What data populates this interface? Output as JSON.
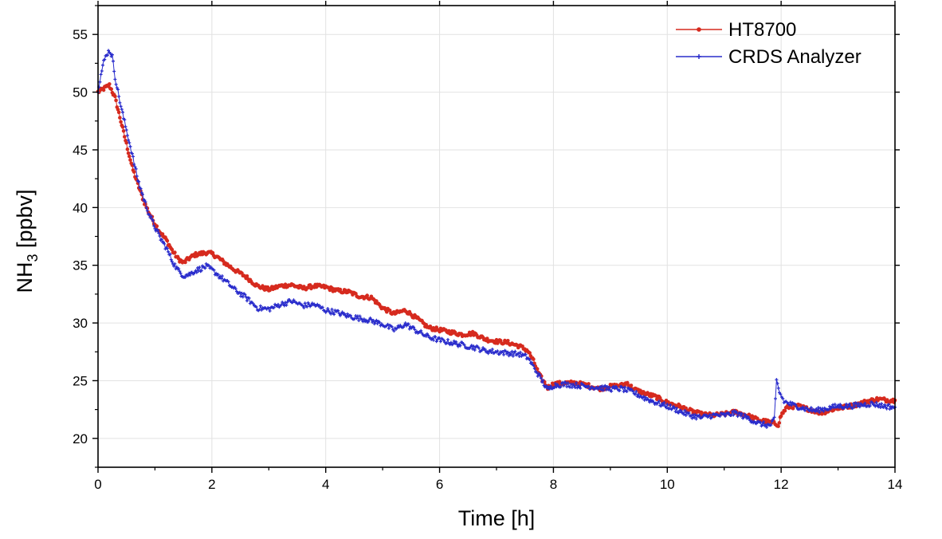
{
  "chart_data": {
    "type": "line",
    "xlabel": "Time [h]",
    "ylabel_main": "NH",
    "ylabel_sub": "3",
    "ylabel_unit": " [ppbv]",
    "xlim": [
      0,
      14
    ],
    "ylim": [
      17.5,
      57.5
    ],
    "xticks": [
      0,
      2,
      4,
      6,
      8,
      10,
      12,
      14
    ],
    "yticks": [
      20,
      25,
      30,
      35,
      40,
      45,
      50,
      55
    ],
    "grid": true,
    "legend_position": "top-right",
    "series": [
      {
        "name": "HT8700",
        "color": "#d62a1e",
        "marker": "circle",
        "points": [
          [
            0.0,
            50.0
          ],
          [
            0.1,
            50.3
          ],
          [
            0.2,
            50.6
          ],
          [
            0.3,
            49.5
          ],
          [
            0.4,
            47.5
          ],
          [
            0.5,
            45.5
          ],
          [
            0.6,
            43.5
          ],
          [
            0.7,
            42.0
          ],
          [
            0.8,
            40.6
          ],
          [
            0.9,
            39.5
          ],
          [
            1.0,
            38.6
          ],
          [
            1.1,
            37.8
          ],
          [
            1.2,
            37.2
          ],
          [
            1.3,
            36.3
          ],
          [
            1.4,
            35.6
          ],
          [
            1.5,
            35.2
          ],
          [
            1.6,
            35.6
          ],
          [
            1.7,
            35.9
          ],
          [
            1.8,
            36.0
          ],
          [
            1.9,
            36.1
          ],
          [
            2.0,
            36.0
          ],
          [
            2.1,
            35.7
          ],
          [
            2.2,
            35.3
          ],
          [
            2.4,
            34.6
          ],
          [
            2.6,
            34.0
          ],
          [
            2.8,
            33.2
          ],
          [
            3.0,
            32.9
          ],
          [
            3.2,
            33.2
          ],
          [
            3.4,
            33.3
          ],
          [
            3.6,
            33.0
          ],
          [
            3.8,
            33.2
          ],
          [
            4.0,
            33.1
          ],
          [
            4.2,
            32.8
          ],
          [
            4.4,
            32.7
          ],
          [
            4.6,
            32.3
          ],
          [
            4.8,
            32.2
          ],
          [
            5.0,
            31.3
          ],
          [
            5.2,
            30.8
          ],
          [
            5.4,
            31.1
          ],
          [
            5.6,
            30.4
          ],
          [
            5.8,
            29.6
          ],
          [
            6.0,
            29.4
          ],
          [
            6.2,
            29.2
          ],
          [
            6.4,
            29.0
          ],
          [
            6.6,
            29.1
          ],
          [
            6.8,
            28.6
          ],
          [
            7.0,
            28.4
          ],
          [
            7.2,
            28.3
          ],
          [
            7.4,
            28.0
          ],
          [
            7.55,
            27.6
          ],
          [
            7.65,
            26.7
          ],
          [
            7.75,
            25.5
          ],
          [
            7.9,
            24.4
          ],
          [
            8.0,
            24.7
          ],
          [
            8.2,
            24.8
          ],
          [
            8.4,
            24.8
          ],
          [
            8.6,
            24.6
          ],
          [
            8.8,
            24.3
          ],
          [
            9.0,
            24.5
          ],
          [
            9.2,
            24.6
          ],
          [
            9.3,
            24.8
          ],
          [
            9.4,
            24.3
          ],
          [
            9.6,
            23.9
          ],
          [
            9.8,
            23.6
          ],
          [
            10.0,
            23.1
          ],
          [
            10.2,
            22.8
          ],
          [
            10.4,
            22.4
          ],
          [
            10.6,
            22.1
          ],
          [
            10.8,
            22.0
          ],
          [
            11.0,
            22.1
          ],
          [
            11.2,
            22.3
          ],
          [
            11.4,
            22.0
          ],
          [
            11.6,
            21.6
          ],
          [
            11.8,
            21.4
          ],
          [
            11.95,
            21.2
          ],
          [
            12.0,
            22.0
          ],
          [
            12.1,
            22.7
          ],
          [
            12.3,
            22.8
          ],
          [
            12.5,
            22.5
          ],
          [
            12.7,
            22.2
          ],
          [
            12.9,
            22.5
          ],
          [
            13.1,
            22.7
          ],
          [
            13.3,
            22.9
          ],
          [
            13.5,
            23.2
          ],
          [
            13.7,
            23.4
          ],
          [
            13.9,
            23.3
          ],
          [
            14.0,
            23.3
          ]
        ]
      },
      {
        "name": "CRDS Analyzer",
        "color": "#2a2dcc",
        "marker": "star",
        "points": [
          [
            0.0,
            50.2
          ],
          [
            0.05,
            51.5
          ],
          [
            0.1,
            52.6
          ],
          [
            0.15,
            53.3
          ],
          [
            0.2,
            53.6
          ],
          [
            0.25,
            53.1
          ],
          [
            0.3,
            51.3
          ],
          [
            0.4,
            48.8
          ],
          [
            0.5,
            46.7
          ],
          [
            0.6,
            44.6
          ],
          [
            0.7,
            42.4
          ],
          [
            0.8,
            40.8
          ],
          [
            0.9,
            39.4
          ],
          [
            1.0,
            38.3
          ],
          [
            1.1,
            37.3
          ],
          [
            1.2,
            36.5
          ],
          [
            1.3,
            35.4
          ],
          [
            1.4,
            34.6
          ],
          [
            1.5,
            34.1
          ],
          [
            1.6,
            34.2
          ],
          [
            1.7,
            34.5
          ],
          [
            1.8,
            34.7
          ],
          [
            1.9,
            34.9
          ],
          [
            2.0,
            34.6
          ],
          [
            2.2,
            33.8
          ],
          [
            2.4,
            32.9
          ],
          [
            2.6,
            32.2
          ],
          [
            2.8,
            31.3
          ],
          [
            3.0,
            31.2
          ],
          [
            3.2,
            31.6
          ],
          [
            3.4,
            31.9
          ],
          [
            3.6,
            31.5
          ],
          [
            3.8,
            31.6
          ],
          [
            4.0,
            31.1
          ],
          [
            4.2,
            30.9
          ],
          [
            4.4,
            30.6
          ],
          [
            4.6,
            30.4
          ],
          [
            4.8,
            30.2
          ],
          [
            5.0,
            29.9
          ],
          [
            5.2,
            29.4
          ],
          [
            5.4,
            29.9
          ],
          [
            5.6,
            29.3
          ],
          [
            5.8,
            28.8
          ],
          [
            6.0,
            28.5
          ],
          [
            6.2,
            28.3
          ],
          [
            6.4,
            28.1
          ],
          [
            6.6,
            27.9
          ],
          [
            6.8,
            27.6
          ],
          [
            7.0,
            27.5
          ],
          [
            7.2,
            27.4
          ],
          [
            7.4,
            27.3
          ],
          [
            7.55,
            27.0
          ],
          [
            7.65,
            26.2
          ],
          [
            7.8,
            25.0
          ],
          [
            7.9,
            24.2
          ],
          [
            8.0,
            24.6
          ],
          [
            8.2,
            24.7
          ],
          [
            8.4,
            24.6
          ],
          [
            8.6,
            24.5
          ],
          [
            8.8,
            24.4
          ],
          [
            9.0,
            24.3
          ],
          [
            9.2,
            24.3
          ],
          [
            9.4,
            24.0
          ],
          [
            9.6,
            23.5
          ],
          [
            9.8,
            23.1
          ],
          [
            10.0,
            22.8
          ],
          [
            10.2,
            22.4
          ],
          [
            10.4,
            22.0
          ],
          [
            10.6,
            21.8
          ],
          [
            10.8,
            22.0
          ],
          [
            11.0,
            22.0
          ],
          [
            11.2,
            22.2
          ],
          [
            11.4,
            21.8
          ],
          [
            11.6,
            21.3
          ],
          [
            11.8,
            21.1
          ],
          [
            11.88,
            21.6
          ],
          [
            11.92,
            25.0
          ],
          [
            11.97,
            24.0
          ],
          [
            12.05,
            23.2
          ],
          [
            12.2,
            22.9
          ],
          [
            12.4,
            22.6
          ],
          [
            12.6,
            22.4
          ],
          [
            12.8,
            22.6
          ],
          [
            13.0,
            22.8
          ],
          [
            13.2,
            22.8
          ],
          [
            13.4,
            22.9
          ],
          [
            13.6,
            23.0
          ],
          [
            13.8,
            22.8
          ],
          [
            14.0,
            22.7
          ]
        ]
      }
    ]
  }
}
